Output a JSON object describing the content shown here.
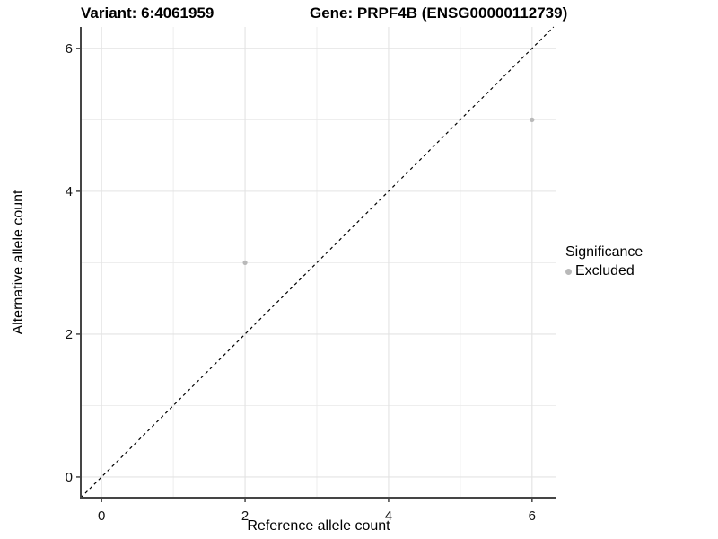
{
  "chart_data": {
    "type": "scatter",
    "title_variant": "Variant: 6:4061959",
    "title_gene": "Gene: PRPF4B (ENSG00000112739)",
    "xlabel": "Reference allele count",
    "ylabel": "Alternative allele count",
    "xlim": [
      -0.29,
      6.34
    ],
    "ylim": [
      -0.29,
      6.3
    ],
    "x_ticks": [
      0,
      2,
      4,
      6
    ],
    "y_ticks": [
      0,
      2,
      4,
      6
    ],
    "minor_gridlines_x": [
      1,
      3,
      5
    ],
    "minor_gridlines_y": [
      1,
      3,
      5
    ],
    "grid": true,
    "series": [
      {
        "name": "Excluded",
        "color": "#b9b9b9",
        "points": [
          {
            "x": 2,
            "y": 3
          },
          {
            "x": 6,
            "y": 5
          }
        ]
      }
    ],
    "reference_line": {
      "type": "identity",
      "style": "dashed",
      "color": "#000000"
    },
    "legend": {
      "title": "Significance",
      "position": "right",
      "items": [
        {
          "label": "Excluded",
          "color": "#b9b9b9",
          "marker": "circle"
        }
      ]
    },
    "colors": {
      "grid_major": "#e3e3e3",
      "grid_minor": "#ebebeb",
      "axis": "#454545",
      "tick_text": "#111111"
    }
  }
}
